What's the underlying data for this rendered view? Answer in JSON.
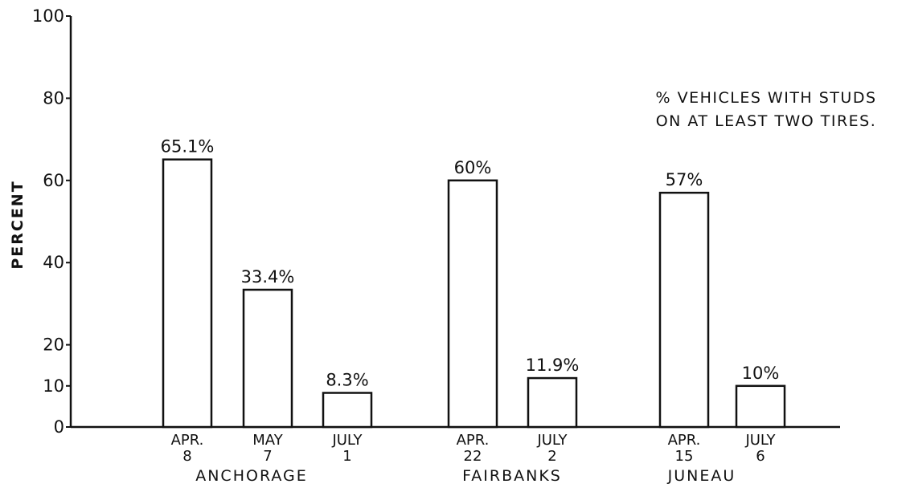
{
  "chart_data": {
    "type": "bar",
    "title": "",
    "xlabel": "",
    "ylabel": "PERCENT",
    "ylim": [
      0,
      100
    ],
    "yticks": [
      "0",
      "10",
      "20",
      "40",
      "60",
      "80",
      "100"
    ],
    "ytick_values": [
      0,
      10,
      20,
      40,
      60,
      80,
      100
    ],
    "annotation": [
      "% VEHICLES WITH STUDS",
      "ON AT LEAST TWO TIRES."
    ],
    "grid": false,
    "groups": [
      {
        "name": "ANCHORAGE",
        "bars": [
          {
            "date_line1": "APR.",
            "date_line2": "8",
            "value": 65.1,
            "label": "65.1%"
          },
          {
            "date_line1": "MAY",
            "date_line2": "7",
            "value": 33.4,
            "label": "33.4%"
          },
          {
            "date_line1": "JULY",
            "date_line2": "1",
            "value": 8.3,
            "label": "8.3%"
          }
        ]
      },
      {
        "name": "FAIRBANKS",
        "bars": [
          {
            "date_line1": "APR.",
            "date_line2": "22",
            "value": 60,
            "label": "60%"
          },
          {
            "date_line1": "JULY",
            "date_line2": "2",
            "value": 11.9,
            "label": "11.9%"
          }
        ]
      },
      {
        "name": "JUNEAU",
        "bars": [
          {
            "date_line1": "APR.",
            "date_line2": "15",
            "value": 57,
            "label": "57%"
          },
          {
            "date_line1": "JULY",
            "date_line2": "6",
            "value": 10,
            "label": "10%"
          }
        ]
      }
    ],
    "colors": {
      "bar_fill": "#ffffff",
      "bar_stroke": "#111111",
      "axis": "#111111"
    }
  }
}
